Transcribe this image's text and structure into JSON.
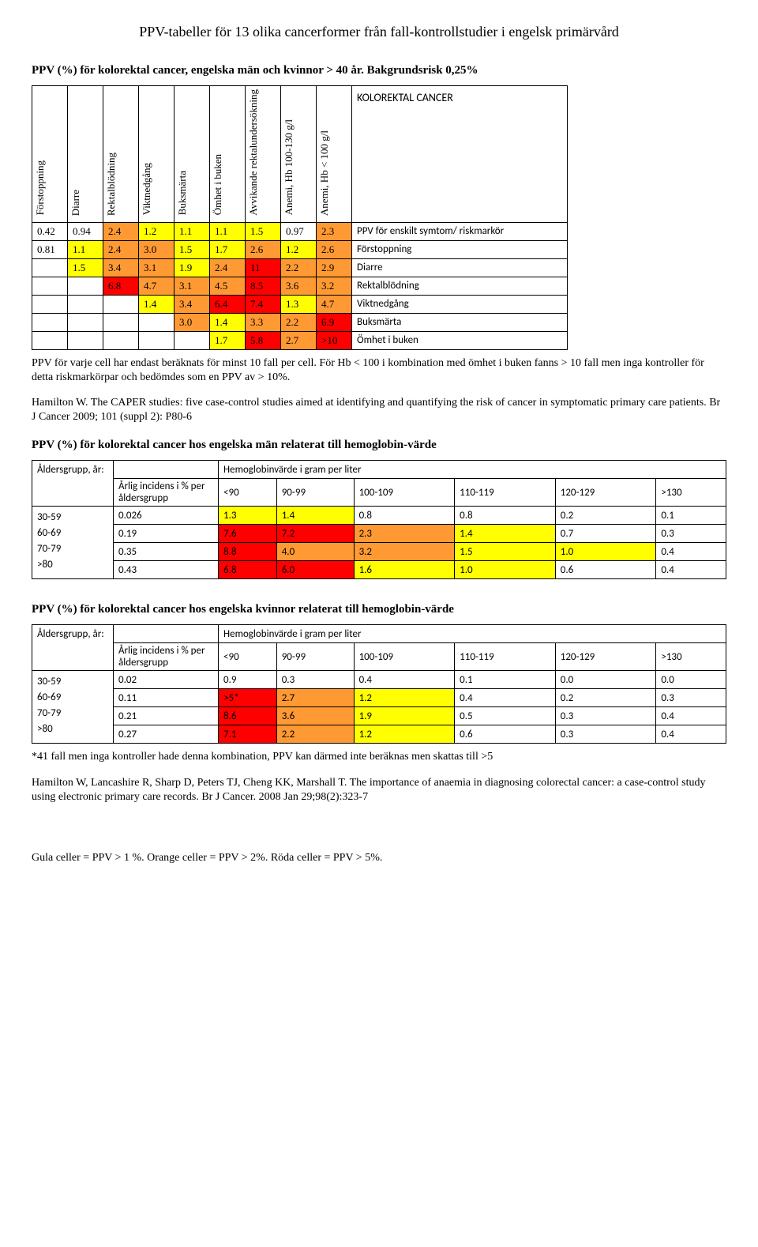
{
  "colors": {
    "yellow": "#ffff00",
    "orange": "#ff9933",
    "red": "#ff0000",
    "none": "transparent"
  },
  "pageTitle": "PPV-tabeller för 13 olika cancerformer från fall-kontrollstudier i engelsk primärvård",
  "section1": {
    "title": "PPV (%) för kolorektal cancer, engelska män och kvinnor > 40 år. Bakgrundsrisk 0,25%",
    "headers": [
      "Förstoppning",
      "Diarre",
      "Rektalblödning",
      "Viktnedgång",
      "Buksmärta",
      "Ömhet i buken",
      "Avvikande rektalundersökning",
      "Anemi, Hb 100-130 g/l",
      "Anemi, Hb < 100 g/l"
    ],
    "cancerLabel": "KOLOREKTAL CANCER",
    "rows": [
      {
        "cells": [
          {
            "v": "0.42"
          },
          {
            "v": "0.94"
          },
          {
            "v": "2.4",
            "c": "orange"
          },
          {
            "v": "1.2",
            "c": "yellow"
          },
          {
            "v": "1.1",
            "c": "yellow"
          },
          {
            "v": "1.1",
            "c": "yellow"
          },
          {
            "v": "1.5",
            "c": "yellow"
          },
          {
            "v": "0.97"
          },
          {
            "v": "2.3",
            "c": "orange"
          }
        ],
        "label": "PPV för enskilt symtom/ riskmarkör"
      },
      {
        "cells": [
          {
            "v": "0.81"
          },
          {
            "v": "1.1",
            "c": "yellow"
          },
          {
            "v": "2.4",
            "c": "orange"
          },
          {
            "v": "3.0",
            "c": "orange"
          },
          {
            "v": "1.5",
            "c": "yellow"
          },
          {
            "v": "1.7",
            "c": "yellow"
          },
          {
            "v": "2.6",
            "c": "orange"
          },
          {
            "v": "1.2",
            "c": "yellow"
          },
          {
            "v": "2.6",
            "c": "orange"
          }
        ],
        "label": "Förstoppning"
      },
      {
        "cells": [
          {
            "v": ""
          },
          {
            "v": "1.5",
            "c": "yellow"
          },
          {
            "v": "3.4",
            "c": "orange"
          },
          {
            "v": "3.1",
            "c": "orange"
          },
          {
            "v": "1.9",
            "c": "yellow"
          },
          {
            "v": "2.4",
            "c": "orange"
          },
          {
            "v": "11",
            "c": "red"
          },
          {
            "v": "2.2",
            "c": "orange"
          },
          {
            "v": "2.9",
            "c": "orange"
          }
        ],
        "label": "Diarre"
      },
      {
        "cells": [
          {
            "v": ""
          },
          {
            "v": ""
          },
          {
            "v": "6.8",
            "c": "red"
          },
          {
            "v": "4.7",
            "c": "orange"
          },
          {
            "v": "3.1",
            "c": "orange"
          },
          {
            "v": "4.5",
            "c": "orange"
          },
          {
            "v": "8.5",
            "c": "red"
          },
          {
            "v": "3.6",
            "c": "orange"
          },
          {
            "v": "3.2",
            "c": "orange"
          }
        ],
        "label": "Rektalblödning"
      },
      {
        "cells": [
          {
            "v": ""
          },
          {
            "v": ""
          },
          {
            "v": ""
          },
          {
            "v": "1.4",
            "c": "yellow"
          },
          {
            "v": "3.4",
            "c": "orange"
          },
          {
            "v": "6.4",
            "c": "red"
          },
          {
            "v": "7.4",
            "c": "red"
          },
          {
            "v": "1.3",
            "c": "yellow"
          },
          {
            "v": "4.7",
            "c": "orange"
          }
        ],
        "label": "Viktnedgång"
      },
      {
        "cells": [
          {
            "v": ""
          },
          {
            "v": ""
          },
          {
            "v": ""
          },
          {
            "v": ""
          },
          {
            "v": "3.0",
            "c": "orange"
          },
          {
            "v": "1.4",
            "c": "yellow"
          },
          {
            "v": "3.3",
            "c": "orange"
          },
          {
            "v": "2.2",
            "c": "orange"
          },
          {
            "v": "6.9",
            "c": "red"
          }
        ],
        "label": "Buksmärta"
      },
      {
        "cells": [
          {
            "v": ""
          },
          {
            "v": ""
          },
          {
            "v": ""
          },
          {
            "v": ""
          },
          {
            "v": ""
          },
          {
            "v": "1.7",
            "c": "yellow"
          },
          {
            "v": "5.8",
            "c": "red"
          },
          {
            "v": "2.7",
            "c": "orange"
          },
          {
            "v": ">10",
            "c": "red"
          }
        ],
        "label": "Ömhet i buken"
      }
    ],
    "note": "PPV för varje cell har endast beräknats för minst 10 fall per cell. För Hb < 100 i kombination med ömhet i buken fanns > 10 fall men inga kontroller för detta riskmarkörpar och bedömdes som en PPV av > 10%.",
    "ref": "Hamilton W. The CAPER studies: five case-control studies aimed at identifying and quantifying the risk of cancer in symptomatic primary care patients. Br J Cancer 2009; 101 (suppl 2): P80-6"
  },
  "section2": {
    "title": "PPV (%) för kolorektal cancer hos engelska män relaterat till hemoglobin-värde",
    "ageLabel": "Åldersgrupp, år:",
    "hbLabel": "Hemoglobinvärde i gram per liter",
    "incidensLabel": "Årlig incidens i % per åldersgrupp",
    "hbCols": [
      "<90",
      "90-99",
      "100-109",
      "110-119",
      "120-129",
      ">130"
    ],
    "ageGroups": [
      "30-59",
      "60-69",
      "70-79",
      ">80"
    ],
    "rows": [
      {
        "inc": "0.026",
        "cells": [
          {
            "v": "1.3",
            "c": "yellow"
          },
          {
            "v": "1.4",
            "c": "yellow"
          },
          {
            "v": "0.8"
          },
          {
            "v": "0.8"
          },
          {
            "v": "0.2"
          },
          {
            "v": "0.1"
          }
        ]
      },
      {
        "inc": "0.19",
        "cells": [
          {
            "v": "7.6",
            "c": "red"
          },
          {
            "v": "7.2",
            "c": "red"
          },
          {
            "v": "2.3",
            "c": "orange"
          },
          {
            "v": "1.4",
            "c": "yellow"
          },
          {
            "v": "0.7"
          },
          {
            "v": "0.3"
          }
        ]
      },
      {
        "inc": "0.35",
        "cells": [
          {
            "v": "8.8",
            "c": "red"
          },
          {
            "v": "4.0",
            "c": "orange"
          },
          {
            "v": "3.2",
            "c": "orange"
          },
          {
            "v": "1.5",
            "c": "yellow"
          },
          {
            "v": "1.0",
            "c": "yellow"
          },
          {
            "v": "0.4"
          }
        ]
      },
      {
        "inc": "0.43",
        "cells": [
          {
            "v": "6.8",
            "c": "red"
          },
          {
            "v": "6.0",
            "c": "red"
          },
          {
            "v": "1.6",
            "c": "yellow"
          },
          {
            "v": "1.0",
            "c": "yellow"
          },
          {
            "v": "0.6"
          },
          {
            "v": "0.4"
          }
        ]
      }
    ]
  },
  "section3": {
    "title": "PPV (%) för kolorektal cancer hos engelska kvinnor relaterat till hemoglobin-värde",
    "ageLabel": "Åldersgrupp, år:",
    "hbLabel": "Hemoglobinvärde i gram per liter",
    "incidensLabel": "Årlig incidens i % per åldersgrupp",
    "hbCols": [
      "<90",
      "90-99",
      "100-109",
      "110-119",
      "120-129",
      ">130"
    ],
    "ageGroups": [
      "30-59",
      "60-69",
      "70-79",
      ">80"
    ],
    "rows": [
      {
        "inc": "0.02",
        "cells": [
          {
            "v": "0.9"
          },
          {
            "v": "0.3"
          },
          {
            "v": "0.4"
          },
          {
            "v": "0.1"
          },
          {
            "v": "0.0"
          },
          {
            "v": "0.0"
          }
        ]
      },
      {
        "inc": "0.11",
        "cells": [
          {
            "v": ">5*",
            "c": "red"
          },
          {
            "v": "2.7",
            "c": "orange"
          },
          {
            "v": "1.2",
            "c": "yellow"
          },
          {
            "v": "0.4"
          },
          {
            "v": "0.2"
          },
          {
            "v": "0.3"
          }
        ]
      },
      {
        "inc": "0.21",
        "cells": [
          {
            "v": "8.6",
            "c": "red"
          },
          {
            "v": "3.6",
            "c": "orange"
          },
          {
            "v": "1.9",
            "c": "yellow"
          },
          {
            "v": "0.5"
          },
          {
            "v": "0.3"
          },
          {
            "v": "0.4"
          }
        ]
      },
      {
        "inc": "0.27",
        "cells": [
          {
            "v": "7.1",
            "c": "red"
          },
          {
            "v": "2.2",
            "c": "orange"
          },
          {
            "v": "1.2",
            "c": "yellow"
          },
          {
            "v": "0.6"
          },
          {
            "v": "0.3"
          },
          {
            "v": "0.4"
          }
        ]
      }
    ],
    "note": "*41 fall men inga kontroller hade denna kombination, PPV kan därmed inte beräknas men skattas till >5",
    "ref": "Hamilton W, Lancashire R, Sharp D, Peters TJ, Cheng KK, Marshall T. The importance of anaemia in diagnosing colorectal cancer: a case-control study using electronic primary care records. Br J Cancer. 2008 Jan 29;98(2):323-7"
  },
  "footer": "Gula celler = PPV > 1 %. Orange celler = PPV > 2%. Röda celler = PPV > 5%."
}
